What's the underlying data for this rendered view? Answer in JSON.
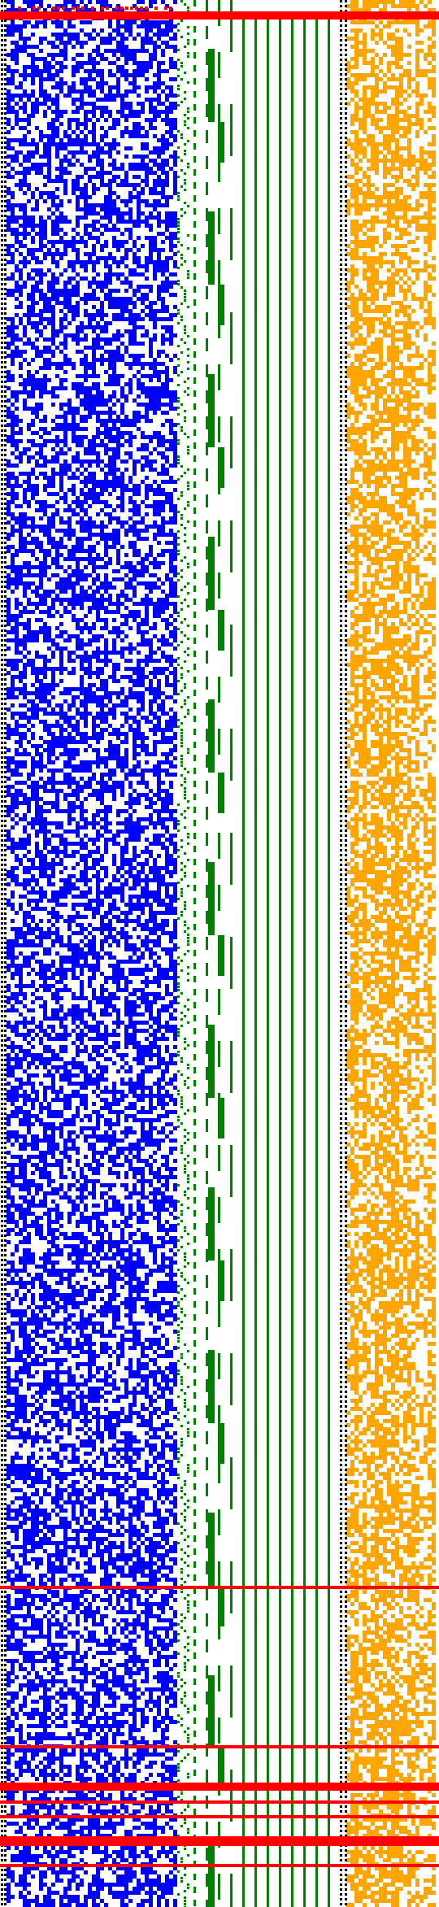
{
  "palette": {
    "background": "#ffffff",
    "blue_cells": "#0000ff",
    "green_lines": "#008000",
    "orange_cells": "#ffa500",
    "red_markers": "#ff0000",
    "dotted_separator": "#000000"
  },
  "panels": [
    {
      "name": "blue-bit-matrix",
      "kind": "random-bit-matrix",
      "color": "blue_cells"
    },
    {
      "name": "green-step-lines",
      "kind": "binary-counter-staircase",
      "color": "green_lines"
    },
    {
      "name": "orange-bit-matrix",
      "kind": "random-bit-matrix",
      "color": "orange_cells"
    }
  ],
  "separators": {
    "style": "dotted",
    "color": "dotted_separator"
  }
}
